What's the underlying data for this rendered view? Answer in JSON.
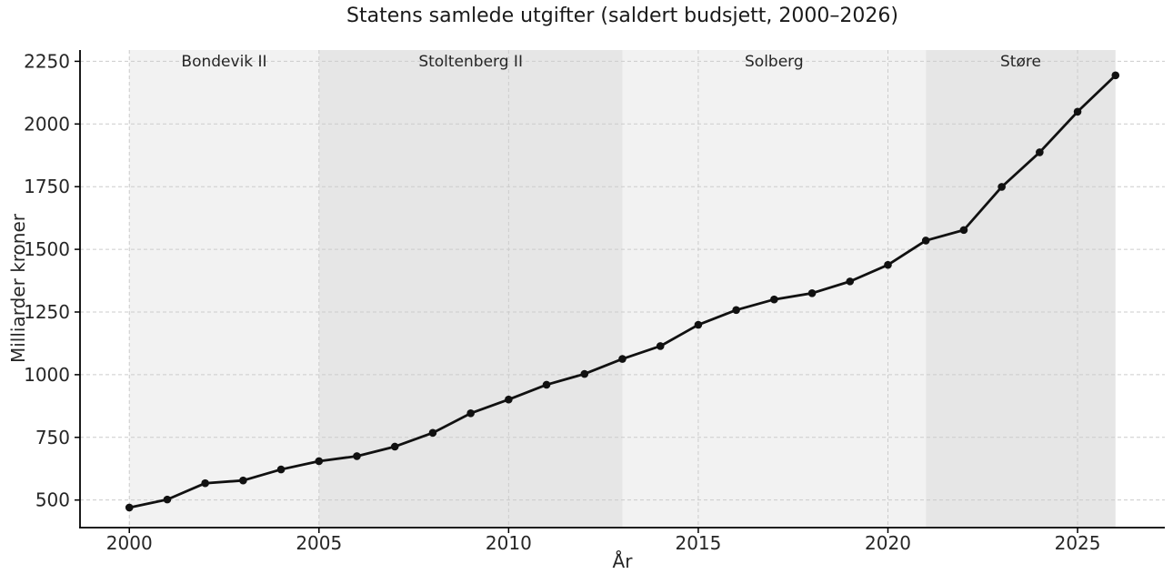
{
  "chart_data": {
    "type": "line",
    "title": "Statens samlede utgifter (saldert budsjett, 2000–2026)",
    "xlabel": "År",
    "ylabel": "Milliarder kroner",
    "x": [
      2000,
      2001,
      2002,
      2003,
      2004,
      2005,
      2006,
      2007,
      2008,
      2009,
      2010,
      2011,
      2012,
      2013,
      2014,
      2015,
      2016,
      2017,
      2018,
      2019,
      2020,
      2021,
      2022,
      2023,
      2024,
      2025,
      2026
    ],
    "values": [
      470,
      502,
      567,
      578,
      622,
      655,
      675,
      713,
      768,
      846,
      901,
      960,
      1003,
      1063,
      1114,
      1199,
      1258,
      1300,
      1325,
      1372,
      1438,
      1535,
      1577,
      1749,
      1887,
      2049,
      2194
    ],
    "xticks": [
      2000,
      2005,
      2010,
      2015,
      2020,
      2025
    ],
    "yticks": [
      500,
      750,
      1000,
      1250,
      1500,
      1750,
      2000,
      2250
    ],
    "xlim": [
      1998.7,
      2027.3
    ],
    "ylim": [
      390,
      2295
    ],
    "grid": true,
    "grid_style": "dashed",
    "legend": "none",
    "line_color": "#111111",
    "marker": "circle",
    "grid_color": "#cccccc",
    "text_color": "#262626",
    "spine_color": "#000000",
    "bands": [
      {
        "label": "Bondevik II",
        "start": 2000,
        "end": 2005,
        "color": "#f2f2f2"
      },
      {
        "label": "Stoltenberg II",
        "start": 2005,
        "end": 2013,
        "color": "#e6e6e6"
      },
      {
        "label": "Solberg",
        "start": 2013,
        "end": 2021,
        "color": "#f2f2f2"
      },
      {
        "label": "Støre",
        "start": 2021,
        "end": 2026,
        "color": "#e6e6e6"
      }
    ]
  }
}
